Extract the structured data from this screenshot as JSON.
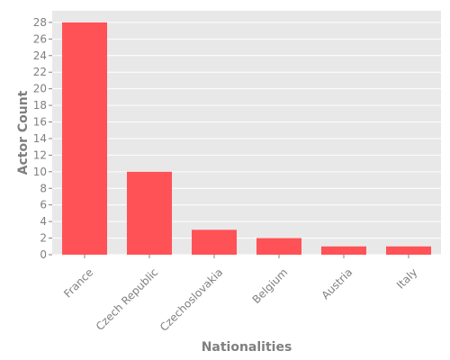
{
  "chart_data": {
    "type": "bar",
    "categories": [
      "France",
      "Czech Republic",
      "Czechoslovakia",
      "Belgium",
      "Austria",
      "Italy"
    ],
    "values": [
      28,
      10,
      3,
      2,
      1,
      1
    ],
    "title": "",
    "xlabel": "Nationalities",
    "ylabel": "Actor Count",
    "ylim": [
      0,
      29.4
    ],
    "yticks": [
      0,
      2,
      4,
      6,
      8,
      10,
      12,
      14,
      16,
      18,
      20,
      22,
      24,
      26,
      28
    ],
    "grid": true,
    "legend": "none",
    "colors": {
      "bar": "#ff5257",
      "plot_background": "#e8e8e8",
      "grid": "#ffffff",
      "text": "#7f7f7f"
    }
  }
}
